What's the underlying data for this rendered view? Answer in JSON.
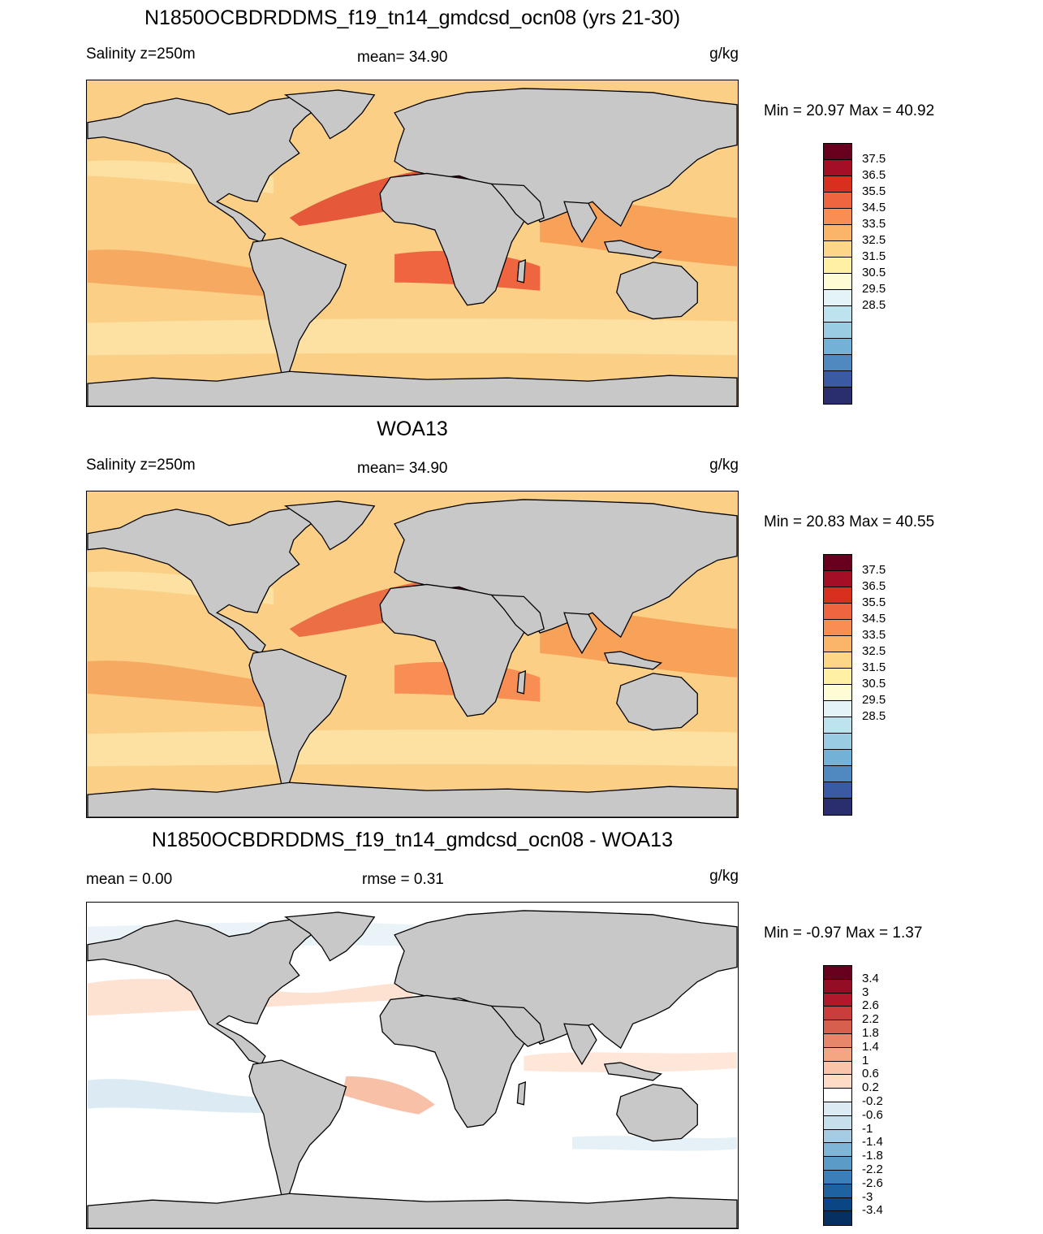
{
  "panels": [
    {
      "title": "N1850OCBDRDDMS_f19_tn14_gmdcsd_ocn08 (yrs 21-30)",
      "left_label": "Salinity z=250m",
      "mid_label": "mean=  34.90",
      "units": "g/kg",
      "minmax": "Min =  20.97 Max =  40.92",
      "base_color": "#fbcf86"
    },
    {
      "title": "WOA13",
      "left_label": "Salinity z=250m",
      "mid_label": "mean=  34.90",
      "units": "g/kg",
      "minmax": "Min =  20.83 Max =  40.55",
      "base_color": "#fbcf86"
    },
    {
      "title": "N1850OCBDRDDMS_f19_tn14_gmdcsd_ocn08 - WOA13",
      "left_label": "mean =    0.00",
      "mid_label": "rmse =    0.31",
      "units": "g/kg",
      "minmax": "Min =  -0.97 Max =    1.37",
      "base_color": "#ffffff"
    }
  ],
  "colorbar_salinity": {
    "labels": [
      "37.5",
      "36.5",
      "35.5",
      "34.5",
      "33.5",
      "32.5",
      "31.5",
      "30.5",
      "29.5",
      "28.5"
    ],
    "colors": [
      "#67001f",
      "#a50f25",
      "#d7301f",
      "#ef6540",
      "#f88e54",
      "#fbb568",
      "#fdd687",
      "#fff0a4",
      "#fefcd4",
      "#e3f3f6",
      "#bde3ee",
      "#9acce3",
      "#74b1d6",
      "#5088c0",
      "#3a5ba4",
      "#2a2d6e"
    ]
  },
  "colorbar_diff": {
    "labels": [
      "3.4",
      "3",
      "2.6",
      "2.2",
      "1.8",
      "1.4",
      "1",
      "0.6",
      "0.2",
      "-0.2",
      "-0.6",
      "-1",
      "-1.4",
      "-1.8",
      "-2.2",
      "-2.6",
      "-3",
      "-3.4"
    ],
    "colors": [
      "#67001f",
      "#930d24",
      "#b2182b",
      "#cb3d3b",
      "#d6604d",
      "#e6866b",
      "#f4a582",
      "#f9c4a9",
      "#fddbc7",
      "#ffffff",
      "#dcebf3",
      "#c5dfec",
      "#a5cce3",
      "#7fb5d6",
      "#5a9bc8",
      "#3a7fb9",
      "#1f62a2",
      "#0c4583",
      "#053061"
    ]
  }
}
